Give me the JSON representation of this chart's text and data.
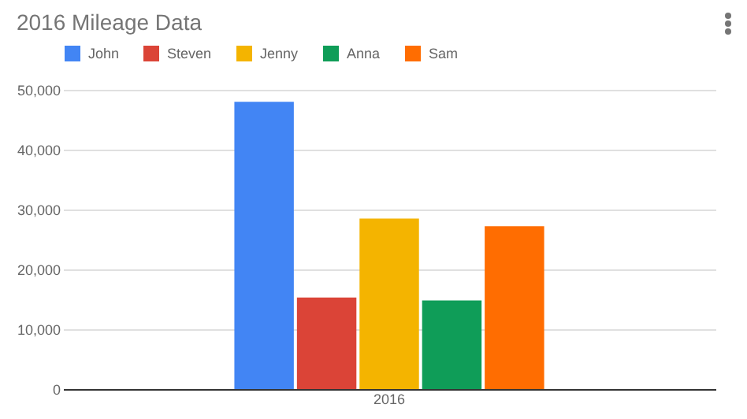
{
  "chart_data": {
    "type": "bar",
    "title": "2016 Mileage Data",
    "categories": [
      "2016"
    ],
    "series": [
      {
        "name": "John",
        "color": "#4285f4",
        "values": [
          48000
        ]
      },
      {
        "name": "Steven",
        "color": "#db4437",
        "values": [
          15300
        ]
      },
      {
        "name": "Jenny",
        "color": "#f4b400",
        "values": [
          28500
        ]
      },
      {
        "name": "Anna",
        "color": "#0f9d58",
        "values": [
          14800
        ]
      },
      {
        "name": "Sam",
        "color": "#ff6d01",
        "values": [
          27200
        ]
      }
    ],
    "ylim": [
      0,
      50000
    ],
    "yticks": [
      {
        "value": 0,
        "label": "0"
      },
      {
        "value": 10000,
        "label": "10,000"
      },
      {
        "value": 20000,
        "label": "20,000"
      },
      {
        "value": 30000,
        "label": "30,000"
      },
      {
        "value": 40000,
        "label": "40,000"
      },
      {
        "value": 50000,
        "label": "50,000"
      }
    ],
    "grid": "y",
    "legend": "top"
  }
}
